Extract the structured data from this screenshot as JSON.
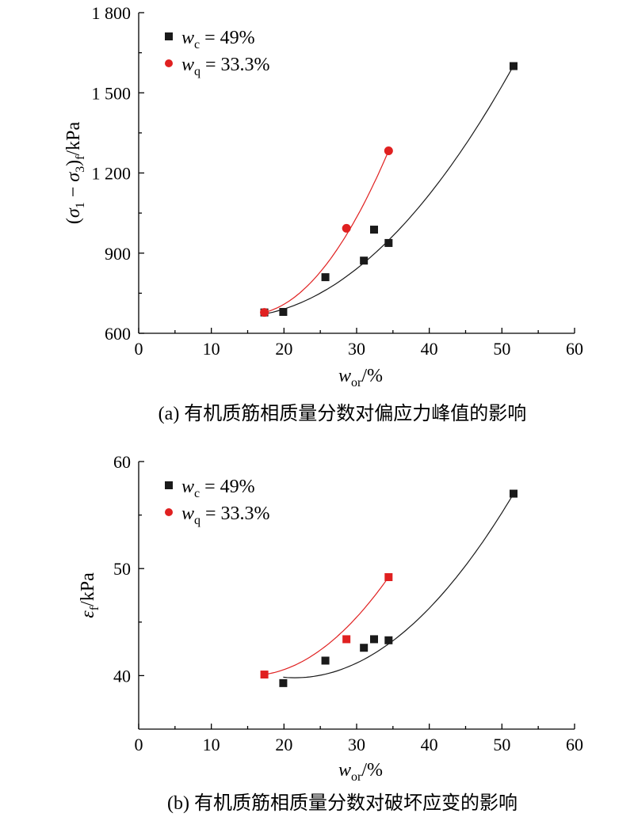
{
  "chart_data": [
    {
      "type": "scatter",
      "panel": "a",
      "caption": "(a) 有机质筋相质量分数对偏应力峰值的影响",
      "xlabel": {
        "main": "w",
        "sub": "or",
        "suffix": "/%"
      },
      "ylabel": {
        "open": "(σ",
        "s1": "1",
        "mid": " − σ",
        "s3": "3",
        "close": ")",
        "sf": "f",
        "unit": "/kPa"
      },
      "xlim": [
        0,
        60
      ],
      "ylim": [
        600,
        1800
      ],
      "xticks": [
        0,
        10,
        20,
        30,
        40,
        50,
        60
      ],
      "xtick_labels": [
        "0",
        "10",
        "20",
        "30",
        "40",
        "50",
        "60"
      ],
      "yticks": [
        600,
        900,
        1200,
        1500,
        1800
      ],
      "ytick_labels": [
        "600",
        "900",
        "1 200",
        "1 500",
        "1 800"
      ],
      "legend_position": "top-left",
      "series": [
        {
          "name": "w_c = 49%",
          "legend": {
            "var": "w",
            "sub": "c",
            "eq": " = 49%"
          },
          "color": "#1a1a1a",
          "marker": "square",
          "x": [
            17.3,
            19.9,
            25.7,
            31.0,
            32.4,
            34.4,
            51.6
          ],
          "y": [
            678,
            680,
            810,
            872,
            988,
            938,
            1600
          ],
          "fit": {
            "x": [
              17.3,
              51.6
            ],
            "y": [
              672,
              1602
            ]
          }
        },
        {
          "name": "w_q = 33.3%",
          "legend": {
            "var": "w",
            "sub": "q",
            "eq": " = 33.3%"
          },
          "color": "#e02020",
          "marker": "circle",
          "x": [
            17.3,
            28.6,
            34.4
          ],
          "y": [
            678,
            993,
            1283
          ],
          "fit": {
            "x": [
              17.3,
              34.4
            ],
            "y": [
              678,
              1283
            ]
          }
        }
      ]
    },
    {
      "type": "scatter",
      "panel": "b",
      "caption": "(b) 有机质筋相质量分数对破坏应变的影响",
      "xlabel": {
        "main": "w",
        "sub": "or",
        "suffix": "/%"
      },
      "ylabel": {
        "main": "ε",
        "sub": "f",
        "unit": "/kPa"
      },
      "xlim": [
        0,
        60
      ],
      "ylim": [
        35,
        60
      ],
      "xticks": [
        0,
        10,
        20,
        30,
        40,
        50,
        60
      ],
      "xtick_labels": [
        "0",
        "10",
        "20",
        "30",
        "40",
        "50",
        "60"
      ],
      "yticks": [
        40,
        50,
        60
      ],
      "ytick_labels": [
        "40",
        "50",
        "60"
      ],
      "legend_position": "top-left",
      "series": [
        {
          "name": "w_c = 49%",
          "legend": {
            "var": "w",
            "sub": "c",
            "eq": " = 49%"
          },
          "color": "#1a1a1a",
          "marker": "square",
          "x": [
            19.9,
            25.7,
            31.0,
            32.4,
            34.4,
            51.6
          ],
          "y": [
            39.3,
            41.4,
            42.6,
            43.4,
            43.3,
            57.0
          ],
          "fit": {
            "x": [
              19.9,
              51.6
            ],
            "y": [
              39.8,
              57.0
            ],
            "vertex": [
              21.5,
              39.8
            ]
          }
        },
        {
          "name": "w_q = 33.3%",
          "legend": {
            "var": "w",
            "sub": "q",
            "eq": " = 33.3%"
          },
          "color": "#e02020",
          "marker": "square",
          "x": [
            17.3,
            28.6,
            34.4
          ],
          "y": [
            40.1,
            43.4,
            49.2
          ],
          "fit": {
            "x": [
              17.3,
              34.4
            ],
            "y": [
              40.1,
              49.2
            ]
          }
        }
      ]
    }
  ]
}
